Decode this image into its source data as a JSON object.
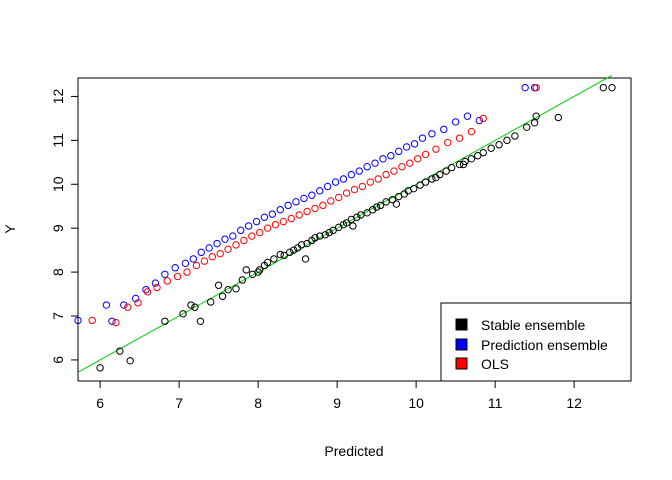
{
  "chart_data": {
    "type": "scatter",
    "xlabel": "Predicted",
    "ylabel": "Y",
    "xlim": [
      5.72,
      12.72
    ],
    "ylim": [
      5.52,
      12.42
    ],
    "x_ticks": [
      6,
      7,
      8,
      9,
      10,
      11,
      12
    ],
    "y_ticks": [
      6,
      7,
      8,
      9,
      10,
      11,
      12
    ],
    "x_tick_labels": [
      "6",
      "7",
      "8",
      "9",
      "10",
      "11",
      "12"
    ],
    "y_tick_labels": [
      "6",
      "7",
      "8",
      "9",
      "10",
      "11",
      "12"
    ],
    "grid": false,
    "legend": {
      "position": "bottom-right",
      "entries": [
        "Stable ensemble",
        "Prediction ensemble",
        "OLS"
      ]
    },
    "colors": {
      "stable": "#000000",
      "prediction": "#0000ff",
      "ols": "#ff0000",
      "reference_line": "#00cc00"
    },
    "reference_line": {
      "x": [
        5.72,
        12.48
      ],
      "y": [
        5.72,
        12.48
      ]
    },
    "series": [
      {
        "name": "Stable ensemble",
        "color": "#000000",
        "x": [
          6.0,
          6.25,
          6.38,
          6.82,
          7.05,
          7.2,
          7.27,
          7.4,
          7.55,
          7.62,
          7.72,
          7.8,
          7.85,
          7.93,
          8.02,
          8.08,
          8.12,
          8.2,
          8.28,
          8.33,
          8.4,
          8.45,
          8.5,
          8.55,
          8.62,
          8.68,
          8.72,
          8.78,
          8.85,
          8.9,
          8.95,
          9.02,
          9.08,
          9.12,
          9.18,
          9.25,
          9.3,
          9.38,
          9.45,
          9.5,
          9.55,
          9.62,
          9.7,
          9.78,
          9.85,
          9.9,
          9.97,
          10.05,
          10.12,
          10.2,
          10.3,
          10.38,
          10.45,
          10.55,
          10.62,
          10.7,
          10.78,
          10.85,
          10.95,
          11.05,
          11.15,
          11.25,
          11.4,
          11.5,
          11.52,
          11.8,
          12.37,
          12.48,
          7.15,
          7.5,
          8.0,
          8.6,
          9.2,
          9.75,
          10.25,
          10.6
        ],
        "y": [
          5.82,
          6.2,
          5.98,
          6.88,
          7.05,
          7.2,
          6.88,
          7.32,
          7.45,
          7.6,
          7.62,
          7.82,
          8.05,
          7.95,
          8.05,
          8.15,
          8.22,
          8.3,
          8.4,
          8.38,
          8.45,
          8.5,
          8.55,
          8.62,
          8.65,
          8.72,
          8.78,
          8.82,
          8.85,
          8.9,
          8.95,
          9.02,
          9.08,
          9.12,
          9.2,
          9.25,
          9.3,
          9.35,
          9.42,
          9.48,
          9.52,
          9.6,
          9.65,
          9.72,
          9.78,
          9.85,
          9.9,
          9.98,
          10.05,
          10.12,
          10.22,
          10.3,
          10.38,
          10.45,
          10.52,
          10.58,
          10.65,
          10.72,
          10.82,
          10.9,
          11.0,
          11.1,
          11.3,
          11.4,
          11.55,
          11.52,
          12.2,
          12.2,
          7.25,
          7.7,
          8.0,
          8.3,
          9.05,
          9.55,
          10.15,
          10.45
        ]
      },
      {
        "name": "Prediction ensemble",
        "color": "#0000ff",
        "x": [
          5.72,
          6.08,
          6.15,
          6.3,
          6.45,
          6.58,
          6.7,
          6.82,
          6.95,
          7.08,
          7.18,
          7.28,
          7.38,
          7.48,
          7.58,
          7.68,
          7.78,
          7.88,
          7.98,
          8.08,
          8.18,
          8.28,
          8.38,
          8.48,
          8.58,
          8.68,
          8.78,
          8.88,
          8.98,
          9.08,
          9.18,
          9.28,
          9.38,
          9.48,
          9.58,
          9.68,
          9.78,
          9.88,
          9.98,
          10.08,
          10.2,
          10.35,
          10.5,
          10.65,
          10.8,
          11.38,
          11.5
        ],
        "y": [
          6.9,
          7.25,
          6.88,
          7.25,
          7.4,
          7.6,
          7.75,
          7.95,
          8.1,
          8.2,
          8.3,
          8.45,
          8.55,
          8.65,
          8.75,
          8.82,
          8.95,
          9.05,
          9.15,
          9.25,
          9.32,
          9.42,
          9.52,
          9.6,
          9.68,
          9.75,
          9.85,
          9.95,
          10.05,
          10.12,
          10.22,
          10.3,
          10.4,
          10.48,
          10.58,
          10.65,
          10.75,
          10.85,
          10.92,
          11.05,
          11.15,
          11.25,
          11.42,
          11.55,
          11.45,
          12.2,
          12.2
        ]
      },
      {
        "name": "OLS",
        "color": "#ff0000",
        "x": [
          5.9,
          6.2,
          6.35,
          6.48,
          6.6,
          6.72,
          6.85,
          6.98,
          7.1,
          7.22,
          7.32,
          7.42,
          7.52,
          7.62,
          7.72,
          7.82,
          7.92,
          8.02,
          8.12,
          8.22,
          8.32,
          8.42,
          8.52,
          8.62,
          8.72,
          8.82,
          8.92,
          9.02,
          9.12,
          9.22,
          9.32,
          9.42,
          9.52,
          9.62,
          9.72,
          9.82,
          9.92,
          10.02,
          10.12,
          10.25,
          10.4,
          10.55,
          10.7,
          10.85,
          11.52
        ],
        "y": [
          6.9,
          6.85,
          7.2,
          7.3,
          7.55,
          7.65,
          7.8,
          7.9,
          8.0,
          8.15,
          8.25,
          8.35,
          8.42,
          8.52,
          8.62,
          8.72,
          8.82,
          8.9,
          9.0,
          9.08,
          9.15,
          9.22,
          9.3,
          9.38,
          9.45,
          9.52,
          9.62,
          9.7,
          9.8,
          9.88,
          9.95,
          10.05,
          10.12,
          10.22,
          10.3,
          10.4,
          10.48,
          10.58,
          10.68,
          10.8,
          10.95,
          11.05,
          11.2,
          11.5,
          12.2
        ]
      }
    ]
  }
}
